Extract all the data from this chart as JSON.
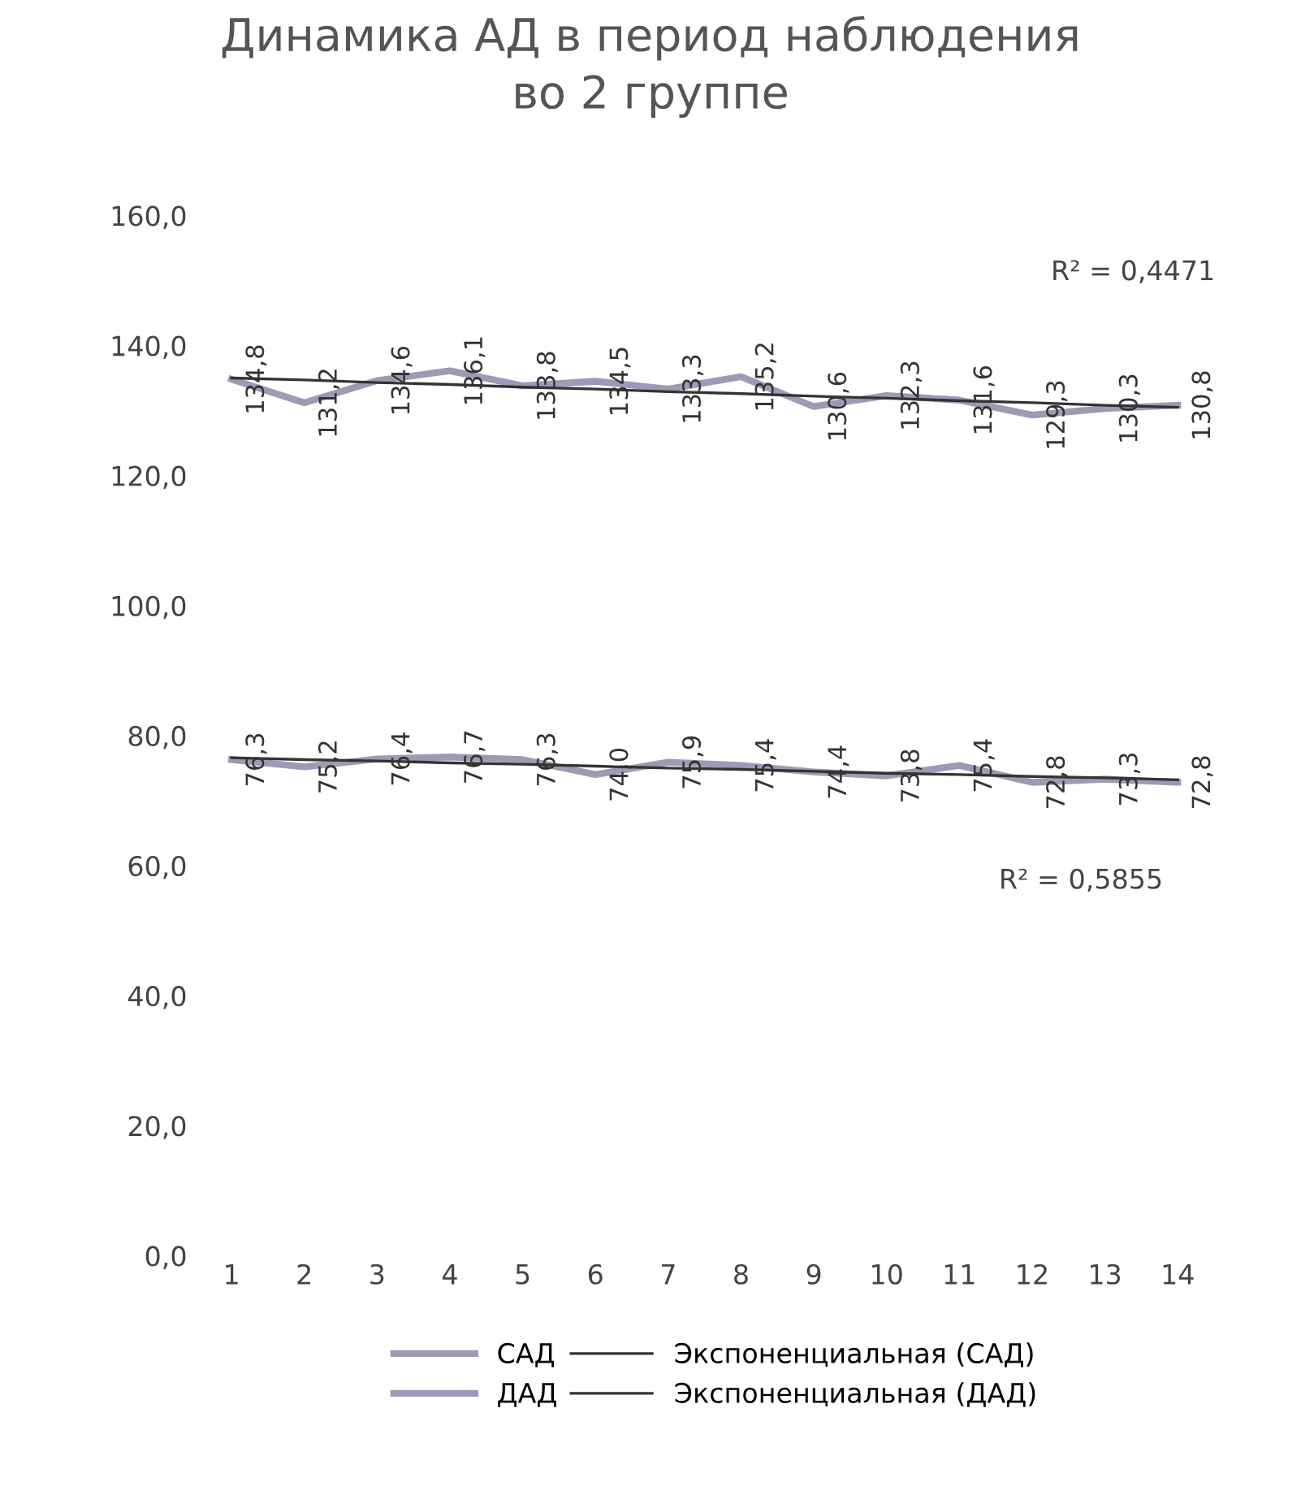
{
  "chart_data": {
    "type": "line",
    "title": "Динамика АД в период наблюдения\nво 2 группе",
    "categories": [
      "1",
      "2",
      "3",
      "4",
      "5",
      "6",
      "7",
      "8",
      "9",
      "10",
      "11",
      "12",
      "13",
      "14"
    ],
    "series": [
      {
        "name": "САД",
        "color": "#9c9ab4",
        "values": [
          134.8,
          131.2,
          134.6,
          136.1,
          133.8,
          134.5,
          133.3,
          135.2,
          130.6,
          132.3,
          131.6,
          129.3,
          130.3,
          130.8
        ],
        "value_labels": [
          "134,8",
          "131,2",
          "134,6",
          "136,1",
          "133,8",
          "134,5",
          "133,3",
          "135,2",
          "130,6",
          "132,3",
          "131,6",
          "129,3",
          "130,3",
          "130,8"
        ]
      },
      {
        "name": "ДАД",
        "color": "#9c9ab4",
        "values": [
          76.3,
          75.2,
          76.4,
          76.7,
          76.3,
          74.0,
          75.9,
          75.4,
          74.4,
          73.8,
          75.4,
          72.8,
          73.3,
          72.8
        ],
        "value_labels": [
          "76,3",
          "75,2",
          "76,4",
          "76,7",
          "76,3",
          "74,0",
          "75,9",
          "75,4",
          "74,4",
          "73,8",
          "75,4",
          "72,8",
          "73,3",
          "72,8"
        ]
      },
      {
        "name": "Экспоненциальная (САД)",
        "color": "#333333",
        "line_style": "solid",
        "values": [
          135.0,
          134.7,
          134.3,
          134.0,
          133.6,
          133.3,
          132.9,
          132.6,
          132.2,
          131.9,
          131.5,
          131.2,
          130.8,
          130.5
        ]
      },
      {
        "name": "Экспоненциальная (ДАД)",
        "color": "#333333",
        "line_style": "solid",
        "values": [
          76.6,
          76.3,
          76.1,
          75.8,
          75.6,
          75.3,
          75.0,
          74.8,
          74.5,
          74.2,
          74.0,
          73.7,
          73.5,
          73.2
        ]
      }
    ],
    "ylim": [
      0,
      160
    ],
    "yticks": [
      {
        "value": 0,
        "label": "0,0"
      },
      {
        "value": 20,
        "label": "20,0"
      },
      {
        "value": 40,
        "label": "40,0"
      },
      {
        "value": 60,
        "label": "60,0"
      },
      {
        "value": 80,
        "label": "80,0"
      },
      {
        "value": 100,
        "label": "100,0"
      },
      {
        "value": 120,
        "label": "120,0"
      },
      {
        "value": 140,
        "label": "140,0"
      },
      {
        "value": 160,
        "label": "160,0"
      }
    ],
    "annotations": [
      "R² = 0,4471",
      "R² = 0,5855"
    ],
    "grid": false,
    "legend": "bottom",
    "marker": "none"
  }
}
